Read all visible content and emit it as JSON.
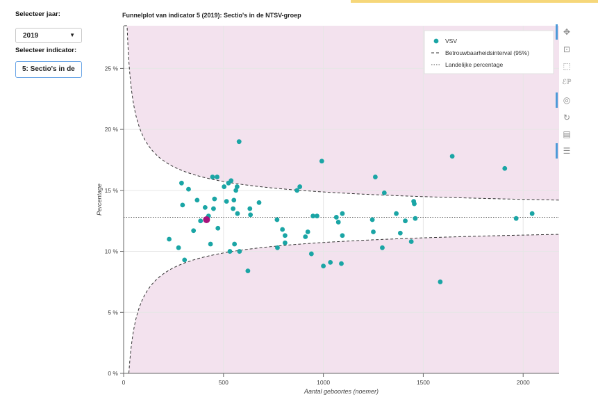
{
  "controls": {
    "year_label": "Selecteer jaar:",
    "year_value": "2019",
    "indicator_label": "Selecteer indicator:",
    "indicator_value": "5: Sectio's in de"
  },
  "toolbar": {
    "icons": [
      "pan-icon",
      "box-zoom-icon",
      "box-select-icon",
      "wheel-zoom-icon",
      "lasso-icon",
      "reset-icon",
      "save-icon",
      "hover-icon"
    ]
  },
  "colors": {
    "band": "#f3e2ee",
    "points": "#1aa5a5",
    "highlight": "#a8137c"
  },
  "chart_data": {
    "type": "scatter",
    "title": "Funnelplot van indicator 5 (2019): Sectio's in de NTSV-groep",
    "xlabel": "Aantal geboortes (noemer)",
    "ylabel": "Percentage",
    "xlim": [
      0,
      2180
    ],
    "ylim": [
      0,
      28.5
    ],
    "x_ticks": [
      0,
      500,
      1000,
      1500,
      2000
    ],
    "x_tick_labels": [
      "0",
      "500",
      "1000",
      "1500",
      "2000"
    ],
    "y_ticks": [
      0,
      5,
      10,
      15,
      20,
      25
    ],
    "y_tick_labels": [
      "0 %",
      "5 %",
      "10 %",
      "15 %",
      "20 %",
      "25 %"
    ],
    "grid": true,
    "legend_position": "top-right",
    "legend": {
      "points": "VSV",
      "ci": "Betrouwbaarheidsinterval (95%)",
      "national": "Landelijke percentage"
    },
    "national_percentage": 12.8,
    "series": [
      {
        "name": "VSV",
        "points": [
          [
            228,
            11.0
          ],
          [
            275,
            10.3
          ],
          [
            290,
            15.6
          ],
          [
            295,
            13.8
          ],
          [
            305,
            9.3
          ],
          [
            325,
            15.1
          ],
          [
            350,
            11.7
          ],
          [
            368,
            14.2
          ],
          [
            385,
            12.5
          ],
          [
            408,
            13.6
          ],
          [
            425,
            12.9
          ],
          [
            435,
            10.6
          ],
          [
            445,
            16.1
          ],
          [
            450,
            13.5
          ],
          [
            455,
            14.3
          ],
          [
            468,
            16.1
          ],
          [
            472,
            11.9
          ],
          [
            503,
            15.3
          ],
          [
            515,
            14.1
          ],
          [
            525,
            15.6
          ],
          [
            532,
            10.0
          ],
          [
            538,
            15.8
          ],
          [
            548,
            13.5
          ],
          [
            552,
            14.2
          ],
          [
            555,
            10.6
          ],
          [
            562,
            15.0
          ],
          [
            568,
            15.3
          ],
          [
            570,
            13.1
          ],
          [
            578,
            19.0
          ],
          [
            580,
            10.0
          ],
          [
            622,
            8.4
          ],
          [
            632,
            13.5
          ],
          [
            635,
            13.0
          ],
          [
            678,
            14.0
          ],
          [
            768,
            12.6
          ],
          [
            770,
            10.3
          ],
          [
            795,
            11.8
          ],
          [
            808,
            11.3
          ],
          [
            808,
            10.7
          ],
          [
            868,
            15.0
          ],
          [
            882,
            15.3
          ],
          [
            910,
            11.2
          ],
          [
            922,
            11.6
          ],
          [
            940,
            9.8
          ],
          [
            948,
            12.9
          ],
          [
            968,
            12.9
          ],
          [
            992,
            17.4
          ],
          [
            1000,
            8.8
          ],
          [
            1035,
            9.1
          ],
          [
            1065,
            12.8
          ],
          [
            1075,
            12.4
          ],
          [
            1090,
            9.0
          ],
          [
            1095,
            11.3
          ],
          [
            1095,
            13.1
          ],
          [
            1245,
            12.6
          ],
          [
            1250,
            11.6
          ],
          [
            1260,
            16.1
          ],
          [
            1295,
            10.3
          ],
          [
            1305,
            14.8
          ],
          [
            1365,
            13.1
          ],
          [
            1385,
            11.5
          ],
          [
            1410,
            12.5
          ],
          [
            1440,
            10.8
          ],
          [
            1452,
            14.1
          ],
          [
            1455,
            13.9
          ],
          [
            1460,
            12.7
          ],
          [
            1585,
            7.5
          ],
          [
            1645,
            17.8
          ],
          [
            1908,
            16.8
          ],
          [
            1965,
            12.7
          ],
          [
            2045,
            13.1
          ]
        ]
      },
      {
        "name": "",
        "highlight": true,
        "points": [
          [
            415,
            12.6
          ]
        ]
      }
    ]
  }
}
